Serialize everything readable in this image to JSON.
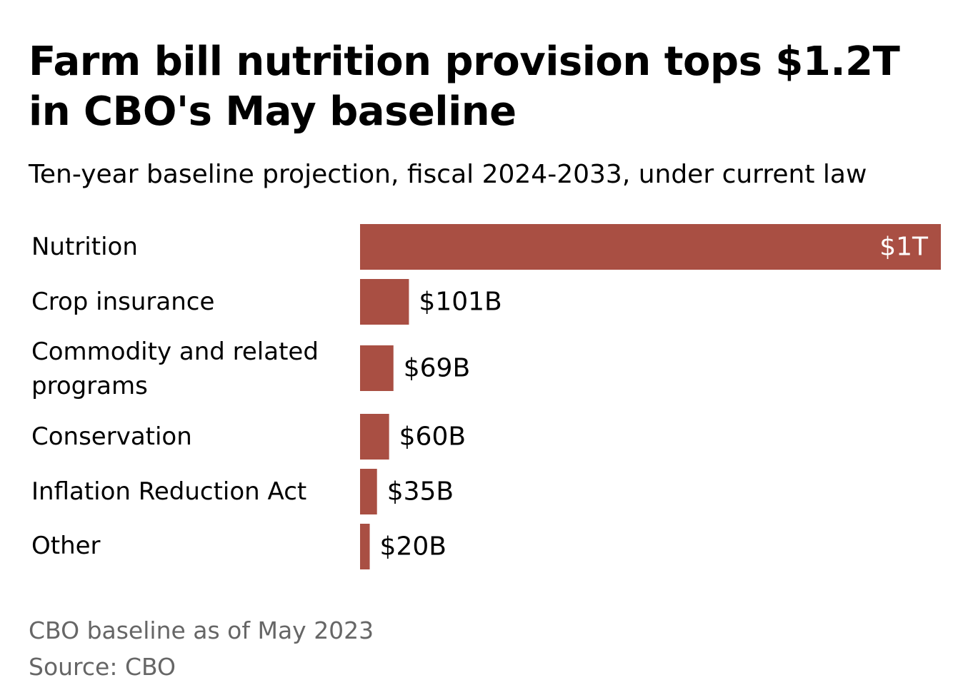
{
  "title": "Farm bill nutrition provision tops $1.2T in CBO's May baseline",
  "subtitle": "Ten-year baseline projection, fiscal 2024-2033, under current law",
  "note": "CBO baseline as of May 2023",
  "source": "Source: CBO",
  "colors": {
    "bar": "#a94f43",
    "text": "#000000",
    "footer": "#666666"
  },
  "chart_data": {
    "type": "bar",
    "orientation": "horizontal",
    "categories": [
      "Nutrition",
      "Crop insurance",
      "Commodity and related programs",
      "Conservation",
      "Inflation Reduction Act",
      "Other"
    ],
    "values": [
      1200,
      101,
      69,
      60,
      35,
      20
    ],
    "value_labels": [
      "$1T",
      "$101B",
      "$69B",
      "$60B",
      "$35B",
      "$20B"
    ],
    "unit": "billions of dollars",
    "xlim": [
      0,
      1200
    ],
    "grid": false,
    "legend": "none"
  }
}
